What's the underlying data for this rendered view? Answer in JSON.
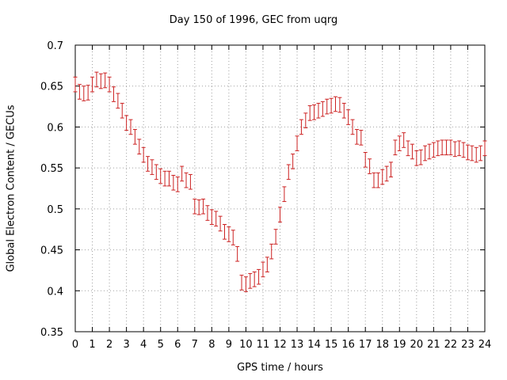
{
  "chart_data": {
    "type": "line",
    "title": "Day 150 of 1996, GEC from uqrg",
    "xlabel": "GPS time / hours",
    "ylabel": "Global Electron Content / GECUs",
    "xlim": [
      0,
      24
    ],
    "ylim": [
      0.35,
      0.7
    ],
    "xticks": [
      "0",
      "1",
      "2",
      "3",
      "4",
      "5",
      "6",
      "7",
      "8",
      "9",
      "10",
      "11",
      "12",
      "13",
      "14",
      "15",
      "16",
      "17",
      "18",
      "19",
      "20",
      "21",
      "22",
      "23",
      "24"
    ],
    "yticks": [
      "0.35",
      "0.4",
      "0.45",
      "0.5",
      "0.55",
      "0.6",
      "0.65",
      "0.7"
    ],
    "grid": true,
    "legend": "none",
    "series": [
      {
        "style": "errorbars",
        "color": "#cc2222",
        "x": [
          0.0,
          0.25,
          0.5,
          0.75,
          1.0,
          1.25,
          1.5,
          1.75,
          2.0,
          2.25,
          2.5,
          2.75,
          3.0,
          3.25,
          3.5,
          3.75,
          4.0,
          4.25,
          4.5,
          4.75,
          5.0,
          5.25,
          5.5,
          5.75,
          6.0,
          6.25,
          6.5,
          6.75,
          7.0,
          7.25,
          7.5,
          7.75,
          8.0,
          8.25,
          8.5,
          8.75,
          9.0,
          9.25,
          9.5,
          9.75,
          10.0,
          10.25,
          10.5,
          10.75,
          11.0,
          11.25,
          11.5,
          11.75,
          12.0,
          12.25,
          12.5,
          12.75,
          13.0,
          13.25,
          13.5,
          13.75,
          14.0,
          14.25,
          14.5,
          14.75,
          15.0,
          15.25,
          15.5,
          15.75,
          16.0,
          16.25,
          16.5,
          16.75,
          17.0,
          17.25,
          17.5,
          17.75,
          18.0,
          18.25,
          18.5,
          18.75,
          19.0,
          19.25,
          19.5,
          19.75,
          20.0,
          20.25,
          20.5,
          20.75,
          21.0,
          21.25,
          21.5,
          21.75,
          22.0,
          22.25,
          22.5,
          22.75,
          23.0,
          23.25,
          23.5,
          23.75,
          24.0
        ],
        "y": [
          0.652,
          0.643,
          0.641,
          0.642,
          0.652,
          0.658,
          0.656,
          0.657,
          0.652,
          0.64,
          0.632,
          0.62,
          0.605,
          0.6,
          0.588,
          0.576,
          0.566,
          0.555,
          0.551,
          0.545,
          0.54,
          0.537,
          0.537,
          0.532,
          0.53,
          0.543,
          0.535,
          0.533,
          0.503,
          0.502,
          0.503,
          0.495,
          0.49,
          0.488,
          0.482,
          0.472,
          0.469,
          0.465,
          0.445,
          0.41,
          0.408,
          0.412,
          0.414,
          0.417,
          0.426,
          0.432,
          0.448,
          0.466,
          0.493,
          0.518,
          0.545,
          0.558,
          0.58,
          0.6,
          0.608,
          0.617,
          0.618,
          0.62,
          0.622,
          0.625,
          0.626,
          0.628,
          0.627,
          0.62,
          0.612,
          0.6,
          0.588,
          0.587,
          0.56,
          0.552,
          0.535,
          0.535,
          0.539,
          0.543,
          0.548,
          0.575,
          0.58,
          0.584,
          0.574,
          0.57,
          0.562,
          0.563,
          0.568,
          0.57,
          0.572,
          0.574,
          0.575,
          0.575,
          0.575,
          0.573,
          0.574,
          0.572,
          0.569,
          0.568,
          0.566,
          0.568,
          0.574
        ],
        "error": 0.009
      }
    ]
  }
}
